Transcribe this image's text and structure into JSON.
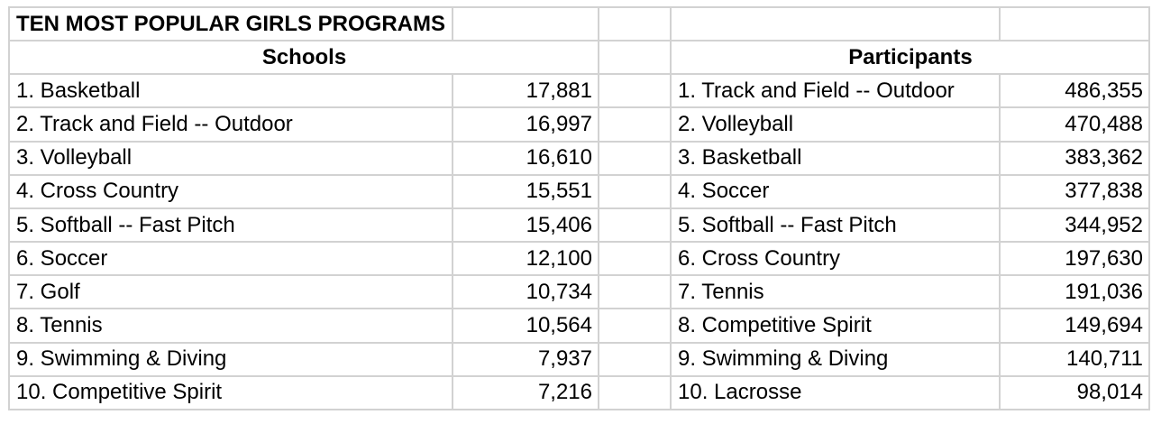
{
  "title": "TEN MOST POPULAR GIRLS PROGRAMS",
  "colors": {
    "background": "#ffffff",
    "gridline": "#d2d2d2",
    "text": "#000000"
  },
  "schools": {
    "header": "Schools",
    "rows": [
      {
        "label": "1. Basketball",
        "value": "17,881"
      },
      {
        "label": "2. Track and Field -- Outdoor",
        "value": "16,997"
      },
      {
        "label": "3. Volleyball",
        "value": "16,610"
      },
      {
        "label": "4. Cross Country",
        "value": "15,551"
      },
      {
        "label": "5. Softball -- Fast Pitch",
        "value": "15,406"
      },
      {
        "label": "6. Soccer",
        "value": "12,100"
      },
      {
        "label": "7. Golf",
        "value": "10,734"
      },
      {
        "label": "8. Tennis",
        "value": "10,564"
      },
      {
        "label": "9. Swimming & Diving",
        "value": "7,937"
      },
      {
        "label": "10. Competitive Spirit",
        "value": "7,216"
      }
    ]
  },
  "participants": {
    "header": "Participants",
    "rows": [
      {
        "label": "1. Track and Field -- Outdoor",
        "value": "486,355"
      },
      {
        "label": "2. Volleyball",
        "value": "470,488"
      },
      {
        "label": "3. Basketball",
        "value": "383,362"
      },
      {
        "label": "4. Soccer",
        "value": "377,838"
      },
      {
        "label": "5. Softball -- Fast Pitch",
        "value": "344,952"
      },
      {
        "label": "6. Cross Country",
        "value": "197,630"
      },
      {
        "label": "7. Tennis",
        "value": "191,036"
      },
      {
        "label": "8. Competitive Spirit",
        "value": "149,694"
      },
      {
        "label": "9. Swimming & Diving",
        "value": "140,711"
      },
      {
        "label": "10. Lacrosse",
        "value": "98,014"
      }
    ]
  }
}
